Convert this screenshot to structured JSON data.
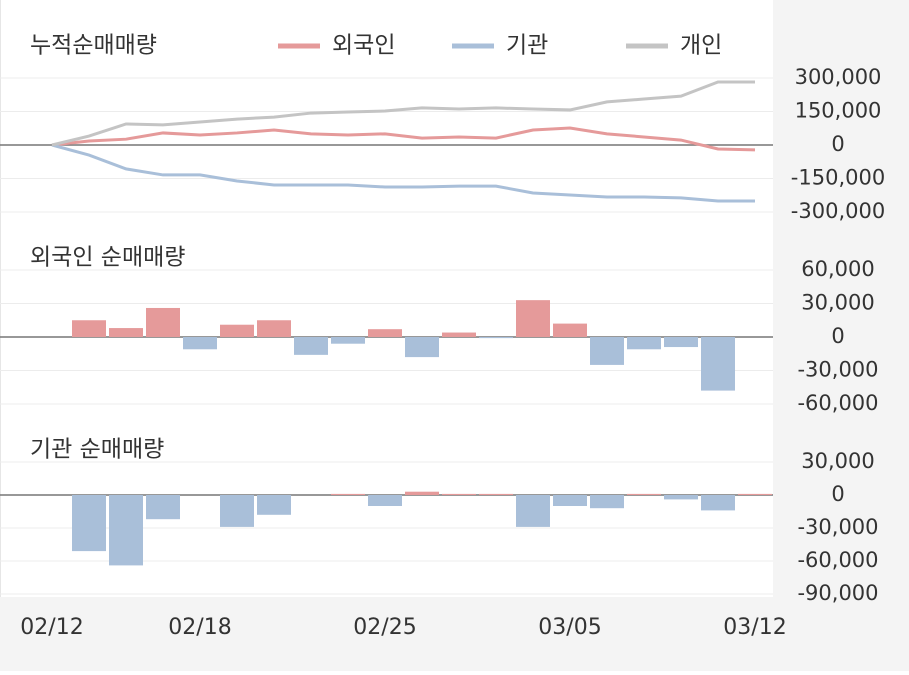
{
  "chart_data": [
    {
      "type": "line",
      "title": "누적순매매량",
      "series": [
        {
          "name": "외국인",
          "color": "#e59a9a",
          "values": [
            0,
            18000,
            26000,
            54000,
            45000,
            54000,
            67000,
            50000,
            45000,
            50000,
            31000,
            36000,
            31000,
            67000,
            76000,
            50000,
            36000,
            22000,
            -18000,
            -22000
          ]
        },
        {
          "name": "기관",
          "color": "#a9bfd9",
          "values": [
            0,
            -45000,
            -107000,
            -134000,
            -134000,
            -161000,
            -179000,
            -179000,
            -179000,
            -188000,
            -188000,
            -184000,
            -184000,
            -215000,
            -224000,
            -233000,
            -233000,
            -237000,
            -251000,
            -251000
          ]
        },
        {
          "name": "개인",
          "color": "#c4c4c4",
          "values": [
            0,
            40000,
            94000,
            90000,
            103000,
            116000,
            125000,
            143000,
            148000,
            152000,
            166000,
            161000,
            166000,
            161000,
            157000,
            193000,
            206000,
            219000,
            282000,
            282000
          ]
        }
      ],
      "ylim": [
        -300000,
        300000
      ],
      "yticks": [
        {
          "value": 300000,
          "label": "300,000"
        },
        {
          "value": 150000,
          "label": "150,000"
        },
        0,
        {
          "value": -150000,
          "label": "-150,000"
        },
        {
          "value": -300000,
          "label": "-300,000"
        }
      ],
      "grid": true
    },
    {
      "type": "bar",
      "title": "외국인 순매매량",
      "color": "#e59a9a",
      "negative_color": "#a9bfd9",
      "values": [
        0,
        15000,
        8000,
        26000,
        -11000,
        11000,
        15000,
        -16000,
        -6000,
        7000,
        -18000,
        4000,
        -1000,
        33000,
        12000,
        -25000,
        -11000,
        -9000,
        -48000,
        0
      ],
      "ylim": [
        -60000,
        60000
      ],
      "yticks": [
        {
          "value": 60000,
          "label": "60,000"
        },
        {
          "value": 30000,
          "label": "30,000"
        },
        0,
        {
          "value": -30000,
          "label": "-30,000"
        },
        {
          "value": -60000,
          "label": "-60,000"
        }
      ],
      "grid": true
    },
    {
      "type": "bar",
      "title": "기관 순매매량",
      "color": "#e59a9a",
      "negative_color": "#a9bfd9",
      "categories": [
        "02/12",
        null,
        null,
        null,
        "02/18",
        null,
        null,
        null,
        null,
        "02/25",
        null,
        null,
        null,
        null,
        "03/05",
        null,
        null,
        null,
        null,
        "03/12"
      ],
      "values": [
        0,
        -51000,
        -64000,
        -22000,
        0,
        -29000,
        -18000,
        0,
        1000,
        -10000,
        3000,
        1000,
        1000,
        -29000,
        -10000,
        -12000,
        1000,
        -4000,
        -14000,
        1000
      ],
      "ylim": [
        -90000,
        30000
      ],
      "yticks": [
        {
          "value": 30000,
          "label": "30,000"
        },
        0,
        {
          "value": -30000,
          "label": "-30,000"
        },
        {
          "value": -60000,
          "label": "-60,000"
        },
        {
          "value": -90000,
          "label": "-90,000"
        }
      ],
      "grid": true
    }
  ]
}
